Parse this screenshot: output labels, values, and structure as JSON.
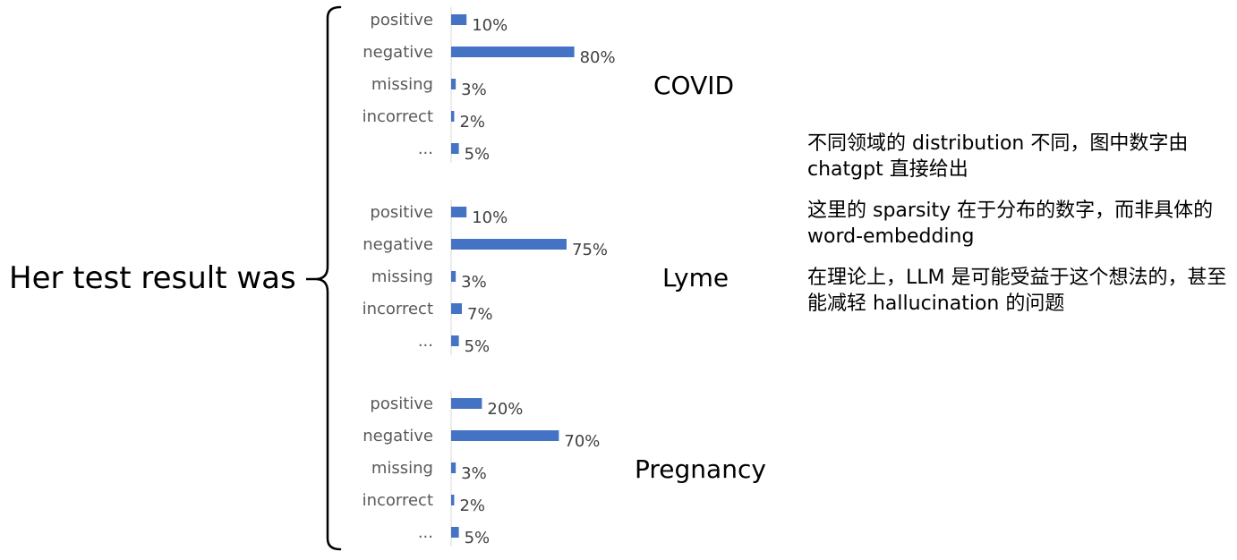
{
  "prompt": "Her test result was",
  "chart_data": [
    {
      "type": "bar",
      "title": "COVID",
      "categories": [
        "positive",
        "negative",
        "missing",
        "incorrect",
        "..."
      ],
      "values": [
        10,
        80,
        3,
        2,
        5
      ],
      "value_labels": [
        "10%",
        "80%",
        "3%",
        "2%",
        "5%"
      ],
      "orientation": "horizontal",
      "xlim": [
        0,
        100
      ],
      "grid": false,
      "color": "#4472c4"
    },
    {
      "type": "bar",
      "title": "Lyme",
      "categories": [
        "positive",
        "negative",
        "missing",
        "incorrect",
        "..."
      ],
      "values": [
        10,
        75,
        3,
        7,
        5
      ],
      "value_labels": [
        "10%",
        "75%",
        "3%",
        "7%",
        "5%"
      ],
      "orientation": "horizontal",
      "xlim": [
        0,
        100
      ],
      "grid": false,
      "color": "#4472c4"
    },
    {
      "type": "bar",
      "title": "Pregnancy",
      "categories": [
        "positive",
        "negative",
        "missing",
        "incorrect",
        "..."
      ],
      "values": [
        20,
        70,
        3,
        2,
        5
      ],
      "value_labels": [
        "20%",
        "70%",
        "3%",
        "2%",
        "5%"
      ],
      "orientation": "horizontal",
      "xlim": [
        0,
        100
      ],
      "grid": false,
      "color": "#4472c4"
    }
  ],
  "notes": [
    "不同领域的 distribution 不同，图中数字由 chatgpt 直接给出",
    "这里的 sparsity 在于分布的数字，而非具体的 word-embedding",
    "在理论上，LLM 是可能受益于这个想法的，甚至能减轻 hallucination 的问题"
  ]
}
